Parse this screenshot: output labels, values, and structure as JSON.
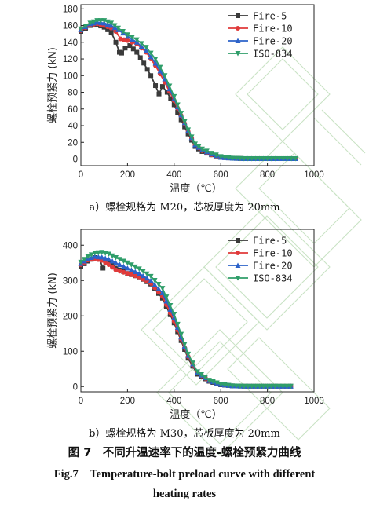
{
  "chart_data": [
    {
      "type": "line",
      "xlabel": "温度（℃）",
      "ylabel": "螺栓预紧力 (kN)",
      "xlim": [
        0,
        1000
      ],
      "ylim": [
        -8,
        185
      ],
      "xticks": [
        0,
        200,
        400,
        600,
        800,
        1000
      ],
      "yticks": [
        0,
        20,
        40,
        60,
        80,
        100,
        120,
        140,
        160,
        180
      ],
      "grid": false,
      "legend": "top-right",
      "series": [
        {
          "name": "Fire-5",
          "color": "#3a3a3a",
          "marker": "square",
          "x": [
            0,
            40,
            70,
            100,
            130,
            150,
            165,
            175,
            190,
            210,
            240,
            270,
            300,
            320,
            335,
            350,
            370,
            400,
            430,
            460,
            490,
            520,
            560,
            600,
            650,
            700,
            800,
            920
          ],
          "y": [
            153,
            160,
            161,
            158,
            152,
            140,
            128,
            127,
            133,
            136,
            128,
            115,
            100,
            88,
            78,
            87,
            80,
            65,
            47,
            30,
            15,
            9,
            5,
            2,
            1,
            0.5,
            0.5,
            0.5
          ]
        },
        {
          "name": "Fire-10",
          "color": "#e03a3a",
          "marker": "circle",
          "x": [
            0,
            40,
            70,
            100,
            130,
            150,
            170,
            200,
            240,
            280,
            320,
            360,
            400,
            430,
            460,
            490,
            520,
            560,
            600,
            650,
            700,
            800,
            920
          ],
          "y": [
            154,
            161,
            162,
            160,
            157,
            153,
            144,
            142,
            138,
            128,
            112,
            92,
            70,
            52,
            33,
            17,
            10,
            5,
            2,
            1,
            0.5,
            0.5,
            0.5
          ]
        },
        {
          "name": "Fire-20",
          "color": "#2c62c9",
          "marker": "triangle",
          "x": [
            0,
            40,
            70,
            100,
            130,
            160,
            200,
            240,
            280,
            320,
            360,
            400,
            430,
            460,
            490,
            520,
            560,
            600,
            650,
            700,
            800,
            920
          ],
          "y": [
            155,
            162,
            164,
            163,
            160,
            155,
            147,
            140,
            130,
            115,
            96,
            72,
            53,
            34,
            17,
            11,
            6,
            2,
            1,
            0.5,
            0.5,
            0.5
          ]
        },
        {
          "name": "ISO-834",
          "color": "#2f9e6a",
          "marker": "triangle-down",
          "x": [
            0,
            40,
            70,
            100,
            130,
            160,
            200,
            240,
            280,
            320,
            360,
            400,
            430,
            460,
            490,
            520,
            560,
            600,
            650,
            700,
            800,
            920
          ],
          "y": [
            156,
            163,
            166,
            166,
            163,
            157,
            149,
            143,
            134,
            120,
            100,
            75,
            55,
            35,
            18,
            12,
            7,
            3,
            1,
            0.5,
            0.5,
            0.5
          ]
        }
      ]
    },
    {
      "type": "line",
      "xlabel": "温度（℃）",
      "ylabel": "螺栓预紧力 (kN)",
      "xlim": [
        0,
        1000
      ],
      "ylim": [
        -15,
        445
      ],
      "xticks": [
        0,
        200,
        400,
        600,
        800,
        1000
      ],
      "yticks": [
        0,
        100,
        200,
        300,
        400
      ],
      "grid": false,
      "legend": "top-right",
      "series": [
        {
          "name": "Fire-5",
          "color": "#3a3a3a",
          "marker": "square",
          "x": [
            0,
            30,
            60,
            80,
            95,
            105,
            120,
            150,
            200,
            250,
            300,
            350,
            400,
            430,
            460,
            500,
            550,
            600,
            650,
            700,
            800,
            900
          ],
          "y": [
            340,
            355,
            365,
            360,
            335,
            358,
            352,
            335,
            320,
            310,
            290,
            250,
            180,
            130,
            80,
            35,
            15,
            5,
            2,
            1,
            1,
            1
          ]
        },
        {
          "name": "Fire-10",
          "color": "#e03a3a",
          "marker": "circle",
          "x": [
            0,
            30,
            60,
            90,
            120,
            150,
            200,
            250,
            300,
            350,
            400,
            430,
            460,
            500,
            550,
            600,
            650,
            700,
            800,
            900
          ],
          "y": [
            345,
            358,
            362,
            357,
            345,
            330,
            320,
            310,
            292,
            255,
            185,
            135,
            85,
            38,
            16,
            6,
            2,
            1,
            1,
            1
          ]
        },
        {
          "name": "Fire-20",
          "color": "#2c62c9",
          "marker": "triangle",
          "x": [
            0,
            30,
            60,
            90,
            120,
            150,
            200,
            250,
            300,
            350,
            400,
            430,
            460,
            500,
            550,
            600,
            650,
            700,
            800,
            900
          ],
          "y": [
            348,
            362,
            368,
            366,
            360,
            350,
            335,
            320,
            300,
            265,
            195,
            140,
            88,
            40,
            17,
            6,
            2,
            1,
            1,
            1
          ]
        },
        {
          "name": "ISO-834",
          "color": "#2f9e6a",
          "marker": "triangle-down",
          "x": [
            0,
            30,
            60,
            90,
            120,
            150,
            200,
            250,
            300,
            350,
            400,
            430,
            460,
            500,
            550,
            600,
            650,
            700,
            800,
            900
          ],
          "y": [
            352,
            368,
            378,
            380,
            375,
            365,
            350,
            333,
            312,
            278,
            205,
            148,
            92,
            42,
            18,
            7,
            2,
            1,
            1,
            1
          ]
        }
      ]
    }
  ],
  "captions": {
    "a": "a）螺栓规格为 M20，芯板厚度为 20mm",
    "b": "b）螺栓规格为 M30，芯板厚度为 20mm",
    "fig_cn": "图 7　不同升温速率下的温度-螺栓预紧力曲线",
    "fig_en_1": "Fig.7　Temperature-bolt preload curve with different",
    "fig_en_2": "heating rates"
  }
}
